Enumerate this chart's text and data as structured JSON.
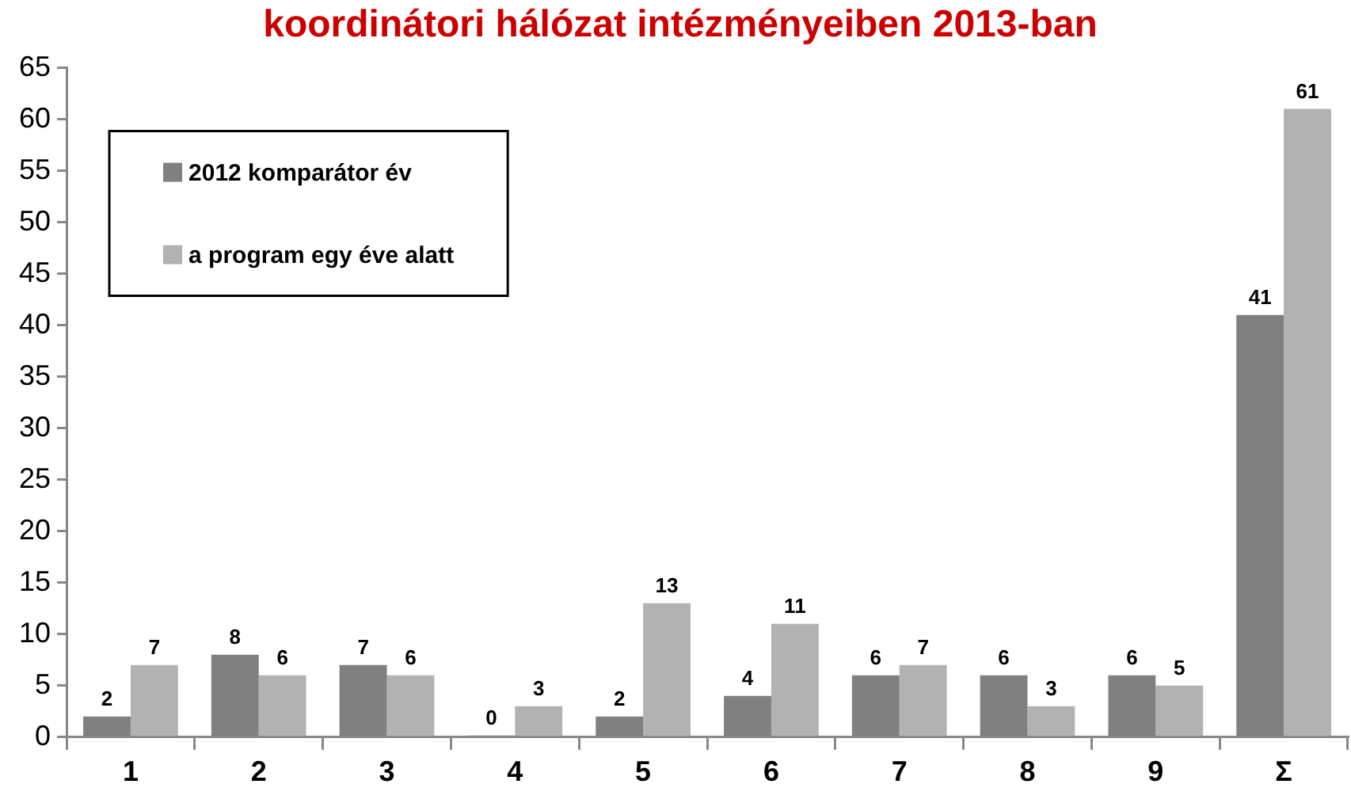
{
  "chart_data": {
    "type": "bar",
    "title": "koordinátori hálózat intézményeiben 2013-ban",
    "categories": [
      "1",
      "2",
      "3",
      "4",
      "5",
      "6",
      "7",
      "8",
      "9",
      "Σ"
    ],
    "series": [
      {
        "name": "2012 komparátor év",
        "color": "#808080",
        "values": [
          2,
          8,
          7,
          0,
          2,
          4,
          6,
          6,
          6,
          41
        ]
      },
      {
        "name": "a program egy éve alatt",
        "color": "#b2b2b2",
        "values": [
          7,
          6,
          6,
          3,
          13,
          11,
          7,
          3,
          5,
          61
        ]
      }
    ],
    "ylim": [
      0,
      65
    ],
    "yticks": [
      0,
      5,
      10,
      15,
      20,
      25,
      30,
      35,
      40,
      45,
      50,
      55,
      60,
      65
    ],
    "grid": false,
    "legend": "top left",
    "data_labels": true
  }
}
